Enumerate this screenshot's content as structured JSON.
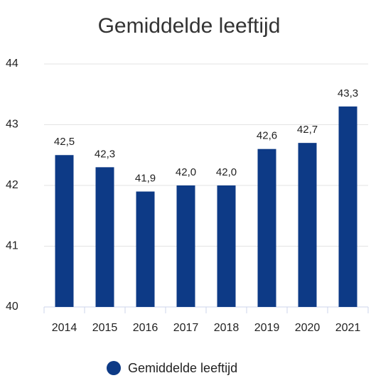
{
  "chart_data": {
    "type": "bar",
    "title": "Gemiddelde leeftijd",
    "categories": [
      "2014",
      "2015",
      "2016",
      "2017",
      "2018",
      "2019",
      "2020",
      "2021"
    ],
    "series": [
      {
        "name": "Gemiddelde leeftijd",
        "color": "#0d3a86",
        "values": [
          42.5,
          42.3,
          41.9,
          42.0,
          42.0,
          42.6,
          42.7,
          43.3
        ],
        "value_labels": [
          "42,5",
          "42,3",
          "41,9",
          "42,0",
          "42,0",
          "42,6",
          "42,7",
          "43,3"
        ]
      }
    ],
    "ylim": [
      40,
      44
    ],
    "yticks": [
      40,
      41,
      42,
      43,
      44
    ],
    "grid": true,
    "legend": "bottom"
  }
}
